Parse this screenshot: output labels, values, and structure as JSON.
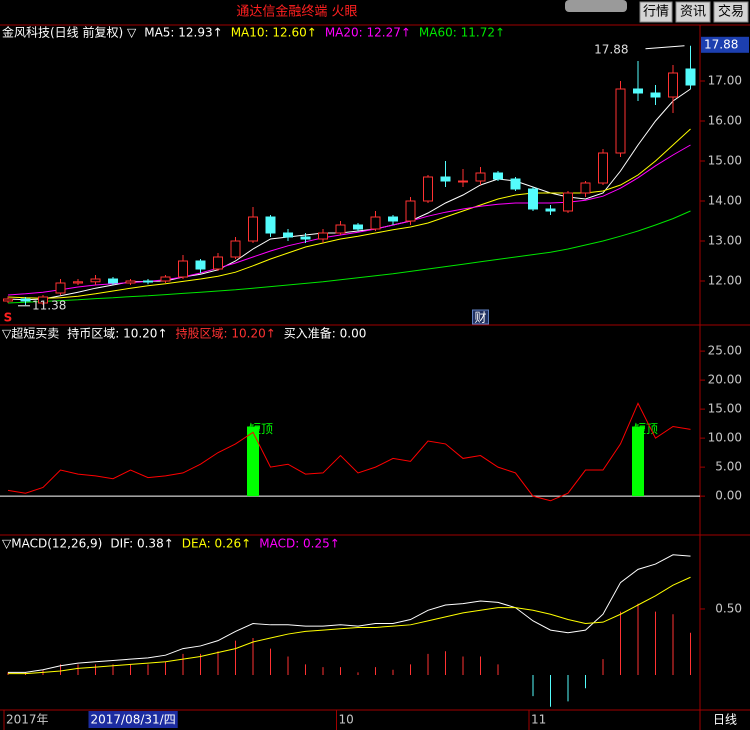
{
  "window": {
    "title": "通达信金融终端 火眼",
    "buttons": [
      "行情",
      "资讯",
      "交易"
    ]
  },
  "x_axis": {
    "labels": [
      {
        "index": 0,
        "label": "2017年"
      },
      {
        "index": 19,
        "label": "10"
      },
      {
        "index": 30,
        "label": "11"
      }
    ],
    "cursor": {
      "index": 5,
      "label": "2017/08/31/四"
    },
    "period": "日线"
  },
  "chart_data": [
    {
      "type": "candlestick",
      "title": "金风科技(日线 前复权) ▽",
      "open": [
        11.5,
        11.55,
        11.45,
        11.7,
        11.95,
        11.98,
        12.05,
        11.95,
        12.0,
        12.0,
        12.1,
        12.5,
        12.3,
        12.6,
        13.0,
        13.6,
        13.2,
        13.1,
        13.05,
        13.2,
        13.4,
        13.3,
        13.6,
        13.5,
        14.0,
        14.6,
        14.5,
        14.5,
        14.7,
        14.55,
        14.3,
        13.8,
        13.75,
        14.2,
        14.45,
        15.2,
        16.8,
        16.7,
        16.6,
        17.3
      ],
      "high": [
        11.62,
        11.6,
        11.65,
        12.05,
        12.05,
        12.15,
        12.1,
        12.05,
        12.05,
        12.15,
        12.65,
        12.55,
        12.7,
        13.1,
        13.85,
        13.65,
        13.3,
        13.2,
        13.3,
        13.5,
        13.45,
        13.75,
        13.65,
        14.1,
        14.65,
        15.0,
        14.8,
        14.85,
        14.75,
        14.6,
        14.35,
        13.9,
        14.25,
        14.5,
        15.3,
        17.0,
        17.5,
        16.9,
        17.4,
        17.88
      ],
      "low": [
        11.45,
        11.4,
        11.4,
        11.65,
        11.9,
        11.9,
        11.9,
        11.9,
        11.92,
        11.95,
        12.05,
        12.2,
        12.25,
        12.55,
        12.95,
        13.1,
        13.0,
        12.95,
        12.95,
        13.15,
        13.25,
        13.25,
        13.4,
        13.4,
        13.95,
        14.35,
        14.35,
        14.4,
        14.5,
        14.25,
        13.75,
        13.65,
        13.7,
        14.1,
        14.4,
        15.1,
        16.5,
        16.4,
        16.2,
        16.8
      ],
      "close": [
        11.55,
        11.5,
        11.6,
        11.95,
        11.98,
        12.05,
        11.95,
        12.0,
        11.98,
        12.1,
        12.5,
        12.3,
        12.6,
        13.0,
        13.6,
        13.2,
        13.1,
        13.05,
        13.2,
        13.4,
        13.3,
        13.6,
        13.5,
        14.0,
        14.6,
        14.5,
        14.5,
        14.7,
        14.55,
        14.3,
        13.8,
        13.75,
        14.2,
        14.45,
        15.2,
        16.8,
        16.7,
        16.6,
        17.2,
        16.9
      ],
      "up_color": "#ff3232",
      "down_color": "#54fcfc",
      "series": [
        {
          "name": "MA5: 12.93↑",
          "color": "#ffffff",
          "values": [
            11.55,
            11.53,
            11.55,
            11.63,
            11.72,
            11.82,
            11.9,
            11.98,
            11.99,
            12.0,
            12.1,
            12.17,
            12.28,
            12.5,
            12.8,
            13.05,
            13.1,
            13.15,
            13.2,
            13.2,
            13.25,
            13.3,
            13.4,
            13.5,
            13.7,
            13.95,
            14.15,
            14.4,
            14.55,
            14.5,
            14.35,
            14.2,
            14.1,
            14.05,
            14.2,
            14.75,
            15.4,
            16.0,
            16.5,
            16.8
          ]
        },
        {
          "name": "MA10: 12.60↑",
          "color": "#ffff00",
          "values": [
            11.6,
            11.58,
            11.57,
            11.58,
            11.62,
            11.68,
            11.75,
            11.82,
            11.88,
            11.93,
            11.99,
            12.05,
            12.12,
            12.22,
            12.38,
            12.55,
            12.7,
            12.85,
            12.95,
            13.05,
            13.12,
            13.2,
            13.28,
            13.35,
            13.45,
            13.6,
            13.75,
            13.9,
            14.05,
            14.15,
            14.2,
            14.2,
            14.2,
            14.2,
            14.25,
            14.4,
            14.65,
            15.0,
            15.4,
            15.8
          ]
        },
        {
          "name": "MA20: 12.27↑",
          "color": "#ff00ff",
          "values": [
            11.65,
            11.68,
            11.72,
            11.78,
            11.85,
            11.9,
            11.93,
            11.96,
            11.99,
            12.03,
            12.1,
            12.2,
            12.32,
            12.45,
            12.6,
            12.75,
            12.88,
            12.98,
            13.08,
            13.15,
            13.22,
            13.3,
            13.4,
            13.5,
            13.62,
            13.72,
            13.8,
            13.87,
            13.92,
            13.95,
            13.95,
            13.95,
            13.97,
            14.02,
            14.12,
            14.32,
            14.58,
            14.88,
            15.15,
            15.4
          ]
        },
        {
          "name": "MA60: 11.72↑",
          "color": "#00e600",
          "values": [
            11.45,
            11.47,
            11.49,
            11.51,
            11.53,
            11.56,
            11.58,
            11.61,
            11.63,
            11.66,
            11.69,
            11.72,
            11.75,
            11.78,
            11.82,
            11.86,
            11.9,
            11.94,
            11.98,
            12.03,
            12.08,
            12.13,
            12.18,
            12.24,
            12.3,
            12.36,
            12.42,
            12.48,
            12.54,
            12.6,
            12.66,
            12.72,
            12.8,
            12.9,
            13.0,
            13.12,
            13.25,
            13.4,
            13.56,
            13.75
          ]
        }
      ],
      "ylim": [
        10.9,
        18.4
      ],
      "yticks": [
        {
          "value": 12,
          "label": "12.00"
        },
        {
          "value": 13,
          "label": "13.00"
        },
        {
          "value": 14,
          "label": "14.00"
        },
        {
          "value": 15,
          "label": "15.00"
        },
        {
          "value": 16,
          "label": "16.00"
        },
        {
          "value": 17,
          "label": "17.00"
        }
      ],
      "high_marker": 17.88,
      "low_marker": 11.38,
      "markers": [
        {
          "index": 0,
          "label": "S"
        },
        {
          "index": 27,
          "label": "财"
        }
      ]
    },
    {
      "type": "line",
      "title": "▽超短买卖",
      "legend": [
        {
          "text": "持币区域: 10.20↑",
          "color": "#ffffff"
        },
        {
          "text": "持股区域: 10.20↑",
          "color": "#ff3232"
        },
        {
          "text": "买入准备: 0.00",
          "color": "#ffffff"
        }
      ],
      "values": [
        1,
        0.5,
        1.5,
        4.5,
        3.8,
        3.5,
        3,
        4.5,
        3.2,
        3.5,
        4,
        5.5,
        7.5,
        9,
        11,
        5,
        5.5,
        3.8,
        4,
        7,
        4,
        5,
        6.5,
        6,
        9.5,
        9,
        6.5,
        7,
        5,
        4,
        0,
        -0.8,
        0.5,
        4.5,
        4.5,
        9,
        16,
        10,
        12,
        11.5
      ],
      "color": "#ff0000",
      "signals": [
        {
          "index": 14,
          "value": 12,
          "label": "短顶"
        },
        {
          "index": 36,
          "value": 12,
          "label": "短顶"
        }
      ],
      "signal_color": "#00ff00",
      "ylim": [
        -6.7,
        29.5
      ],
      "yticks": [
        {
          "value": 0,
          "label": "0.00"
        },
        {
          "value": 5,
          "label": "5.00"
        },
        {
          "value": 10,
          "label": "10.00"
        },
        {
          "value": 15,
          "label": "15.00"
        },
        {
          "value": 20,
          "label": "20.00"
        },
        {
          "value": 25,
          "label": "25.00"
        }
      ]
    },
    {
      "type": "macd",
      "title": "▽MACD(12,26,9)",
      "series": [
        {
          "name": "DIF: 0.38↑",
          "color": "#ffffff",
          "values": [
            0.02,
            0.02,
            0.04,
            0.07,
            0.09,
            0.1,
            0.11,
            0.12,
            0.13,
            0.15,
            0.2,
            0.22,
            0.26,
            0.33,
            0.39,
            0.38,
            0.38,
            0.37,
            0.37,
            0.38,
            0.37,
            0.39,
            0.39,
            0.42,
            0.49,
            0.53,
            0.54,
            0.56,
            0.55,
            0.51,
            0.41,
            0.34,
            0.32,
            0.34,
            0.46,
            0.7,
            0.8,
            0.84,
            0.91,
            0.9
          ]
        },
        {
          "name": "DEA: 0.26↑",
          "color": "#ffff00",
          "values": [
            0.01,
            0.01,
            0.02,
            0.03,
            0.05,
            0.06,
            0.07,
            0.08,
            0.09,
            0.1,
            0.12,
            0.14,
            0.17,
            0.2,
            0.25,
            0.28,
            0.31,
            0.33,
            0.34,
            0.35,
            0.36,
            0.36,
            0.37,
            0.38,
            0.41,
            0.44,
            0.47,
            0.49,
            0.51,
            0.51,
            0.49,
            0.46,
            0.42,
            0.39,
            0.4,
            0.46,
            0.53,
            0.6,
            0.68,
            0.74
          ]
        }
      ],
      "histogram": {
        "name": "MACD: 0.25↑",
        "color": "#ff00ff",
        "values": [
          0.02,
          0.02,
          0.04,
          0.08,
          0.08,
          0.08,
          0.08,
          0.08,
          0.08,
          0.1,
          0.16,
          0.16,
          0.18,
          0.26,
          0.28,
          0.2,
          0.14,
          0.08,
          0.06,
          0.06,
          0.02,
          0.06,
          0.04,
          0.08,
          0.16,
          0.18,
          0.14,
          0.14,
          0.08,
          0,
          -0.16,
          -0.24,
          -0.2,
          -0.1,
          0.12,
          0.48,
          0.54,
          0.48,
          0.46,
          0.32
        ]
      },
      "up_color": "#ff3232",
      "down_color": "#54fcfc",
      "ylim": [
        -0.265,
        1.06
      ],
      "yticks": [
        {
          "value": 0.5,
          "label": "0.50"
        }
      ]
    }
  ]
}
